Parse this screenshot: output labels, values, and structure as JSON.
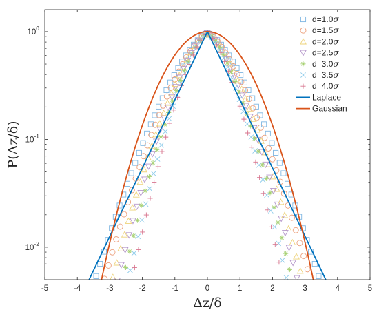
{
  "chart_data": {
    "type": "scatter",
    "xlabel": "Δz/δ",
    "ylabel": "P(Δz/δ)",
    "xlim": [
      -5,
      5
    ],
    "ylim": [
      0.005,
      1.6
    ],
    "yscale": "log",
    "xticks": [
      -5,
      -4,
      -3,
      -2,
      -1,
      0,
      1,
      2,
      3,
      4,
      5
    ],
    "xtick_labels": [
      "-5",
      "-4",
      "-3",
      "-2",
      "-1",
      "0",
      "1",
      "2",
      "3",
      "4",
      "5"
    ],
    "yticks": [
      {
        "value": 1,
        "base": "10",
        "exp": "0"
      },
      {
        "value": 0.1,
        "base": "10",
        "exp": "-1"
      },
      {
        "value": 0.01,
        "base": "10",
        "exp": "-2"
      }
    ],
    "grid": false,
    "legend_position": "top-right",
    "series": [
      {
        "name": "d=1.0",
        "unit": "σ",
        "marker": "square",
        "color": "#7eb6e2",
        "width": 0.85
      },
      {
        "name": "d=1.5",
        "unit": "σ",
        "marker": "circle",
        "color": "#ec9f7b",
        "width": 0.78
      },
      {
        "name": "d=2.0",
        "unit": "σ",
        "marker": "triangle-up",
        "color": "#eed37a",
        "width": 0.72
      },
      {
        "name": "d=2.5",
        "unit": "σ",
        "marker": "triangle-down",
        "color": "#b597cb",
        "width": 0.68
      },
      {
        "name": "d=3.0",
        "unit": "σ",
        "marker": "asterisk",
        "color": "#a7d173",
        "width": 0.64
      },
      {
        "name": "d=3.5",
        "unit": "σ",
        "marker": "x",
        "color": "#8dcbea",
        "width": 0.6
      },
      {
        "name": "d=4.0",
        "unit": "σ",
        "marker": "plus",
        "color": "#d7738d",
        "width": 0.57
      }
    ],
    "lines": [
      {
        "name": "Laplace",
        "color": "#0072bd",
        "kind": "laplace"
      },
      {
        "name": "Gaussian",
        "color": "#d95319",
        "kind": "gaussian"
      }
    ]
  }
}
